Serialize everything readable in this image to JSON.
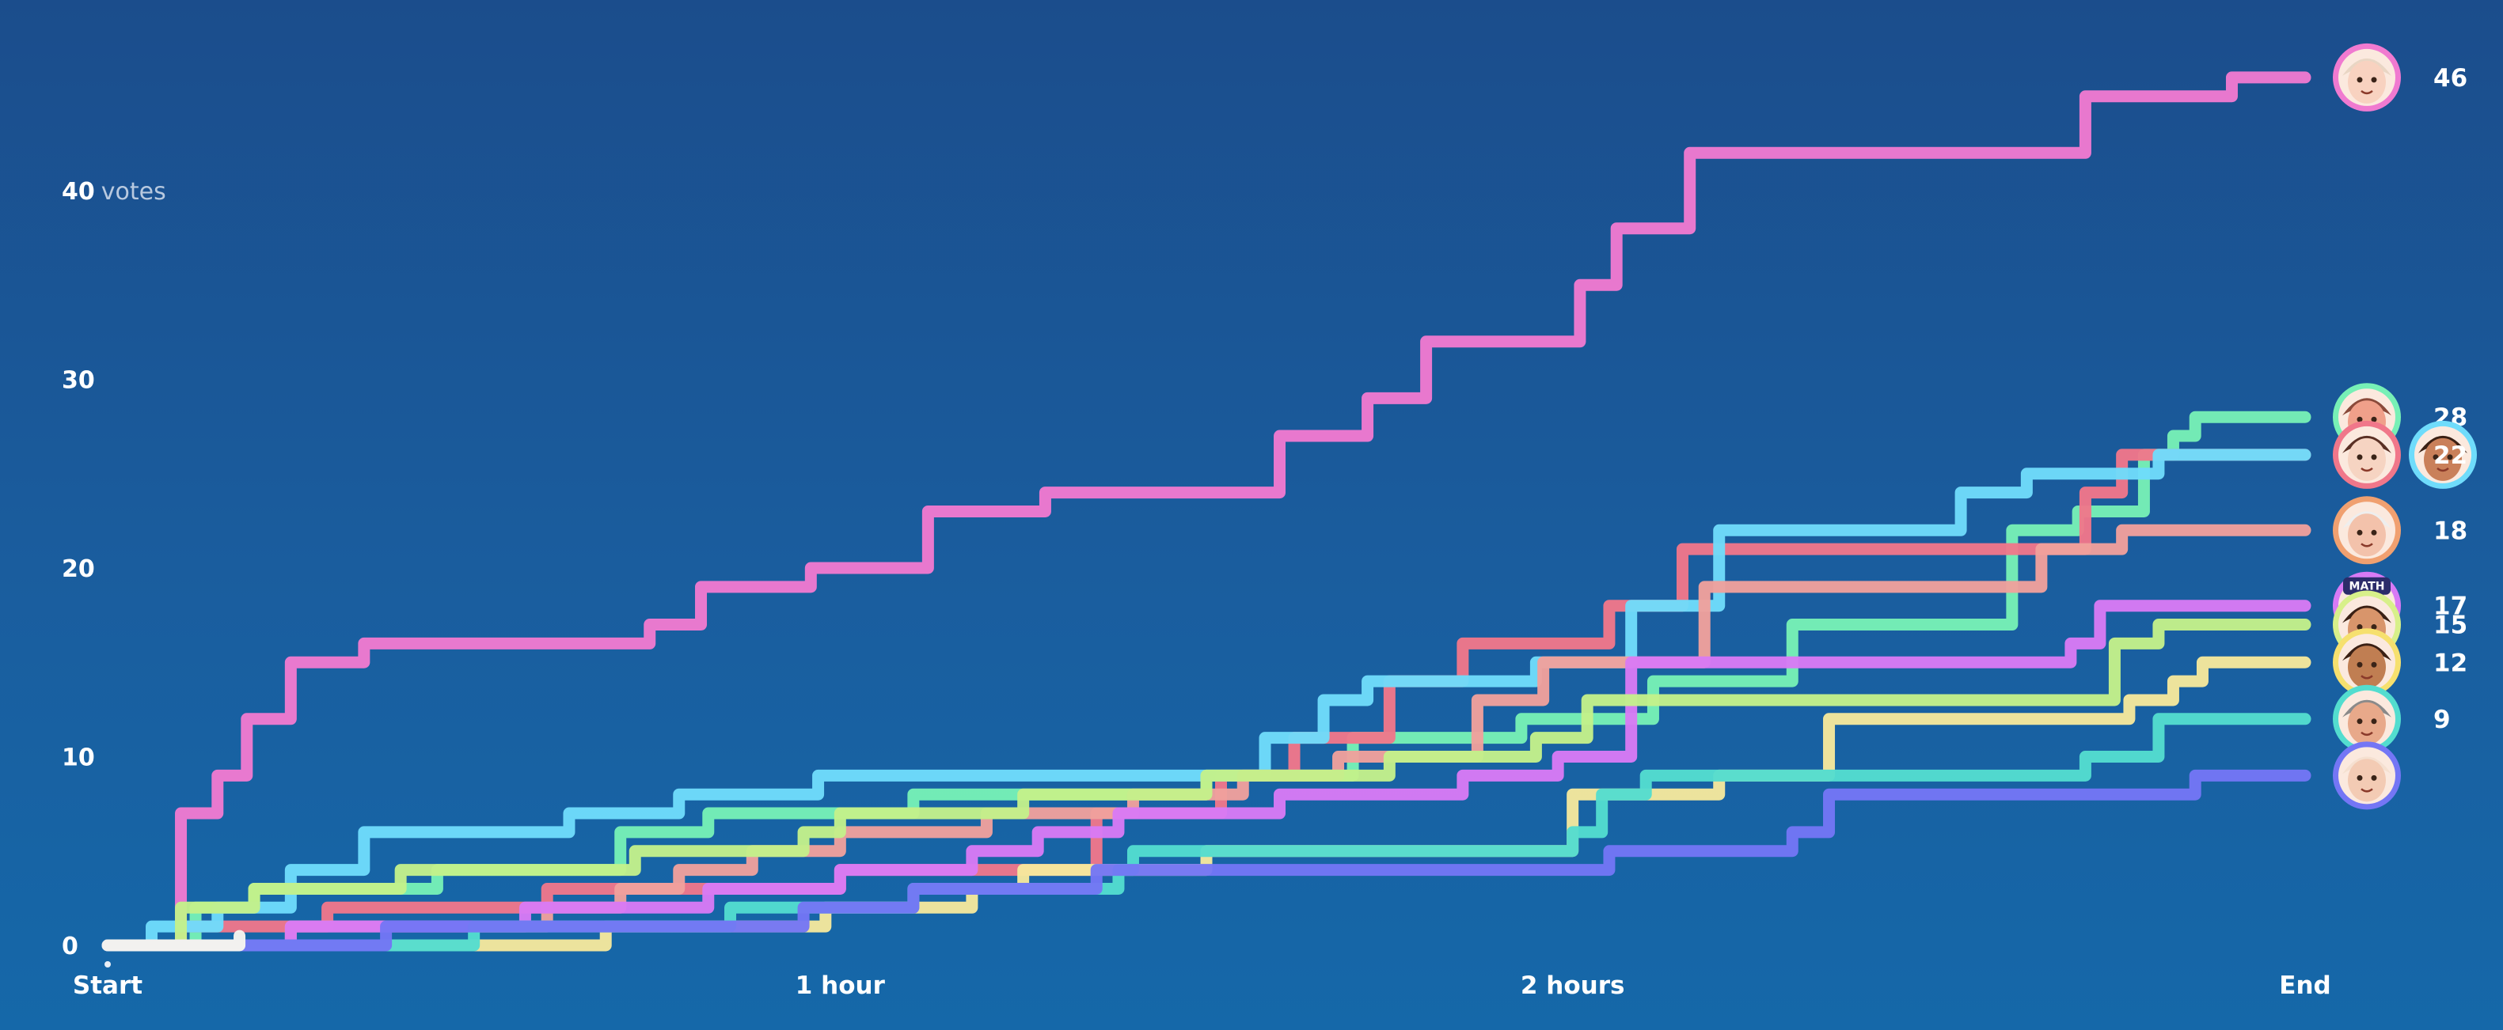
{
  "chart_data": {
    "type": "line",
    "step": true,
    "x_ticks": [
      "Start",
      "1 hour",
      "2 hours",
      "End"
    ],
    "x_tick_values": [
      0,
      1,
      2,
      3
    ],
    "xlim": [
      0,
      3
    ],
    "y_ticks": [
      0,
      10,
      20,
      30,
      40
    ],
    "y_unit_label": "votes",
    "ylim": [
      0,
      48
    ],
    "grid": false,
    "legend": "end-of-line avatars with final counts",
    "end_label_visible": [
      "46",
      "28",
      "",
      "22",
      "18",
      "17",
      "15",
      "12",
      "9"
    ],
    "series": [
      {
        "id": "pink",
        "color": "#f07ad0",
        "final": 46,
        "points": [
          [
            0,
            0
          ],
          [
            0.07,
            0
          ],
          [
            0.1,
            7
          ],
          [
            0.15,
            9
          ],
          [
            0.19,
            12
          ],
          [
            0.25,
            15
          ],
          [
            0.35,
            16
          ],
          [
            0.74,
            17
          ],
          [
            0.81,
            19
          ],
          [
            0.96,
            20
          ],
          [
            1.12,
            23
          ],
          [
            1.28,
            24
          ],
          [
            1.6,
            27
          ],
          [
            1.72,
            29
          ],
          [
            1.8,
            32
          ],
          [
            2.01,
            35
          ],
          [
            2.06,
            38
          ],
          [
            2.16,
            42
          ],
          [
            2.7,
            45
          ],
          [
            2.9,
            46
          ],
          [
            3,
            46
          ]
        ]
      },
      {
        "id": "green",
        "color": "#77f0b6",
        "final": 28,
        "points": [
          [
            0,
            0
          ],
          [
            0.12,
            2
          ],
          [
            0.2,
            3
          ],
          [
            0.45,
            4
          ],
          [
            0.7,
            6
          ],
          [
            0.82,
            7
          ],
          [
            1.1,
            8
          ],
          [
            1.5,
            9
          ],
          [
            1.7,
            11
          ],
          [
            1.93,
            12
          ],
          [
            2.11,
            14
          ],
          [
            2.3,
            17
          ],
          [
            2.6,
            22
          ],
          [
            2.69,
            23
          ],
          [
            2.78,
            26
          ],
          [
            2.82,
            27
          ],
          [
            2.85,
            28
          ],
          [
            3,
            28
          ]
        ]
      },
      {
        "id": "coral",
        "color": "#f0778a",
        "final": 26,
        "points": [
          [
            0,
            0
          ],
          [
            0.1,
            1
          ],
          [
            0.3,
            2
          ],
          [
            0.6,
            3
          ],
          [
            1.0,
            4
          ],
          [
            1.35,
            7
          ],
          [
            1.52,
            9
          ],
          [
            1.62,
            11
          ],
          [
            1.75,
            14
          ],
          [
            1.85,
            16
          ],
          [
            2.05,
            18
          ],
          [
            2.15,
            21
          ],
          [
            2.55,
            21
          ],
          [
            2.7,
            24
          ],
          [
            2.75,
            26
          ],
          [
            3,
            26
          ]
        ]
      },
      {
        "id": "sky",
        "color": "#6fdcfb",
        "final": 26,
        "points": [
          [
            0,
            0
          ],
          [
            0.06,
            1
          ],
          [
            0.15,
            2
          ],
          [
            0.25,
            4
          ],
          [
            0.35,
            6
          ],
          [
            0.63,
            7
          ],
          [
            0.78,
            8
          ],
          [
            0.97,
            9
          ],
          [
            1.3,
            9
          ],
          [
            1.58,
            11
          ],
          [
            1.66,
            13
          ],
          [
            1.72,
            14
          ],
          [
            1.95,
            15
          ],
          [
            2.08,
            18
          ],
          [
            2.2,
            22
          ],
          [
            2.53,
            24
          ],
          [
            2.62,
            25
          ],
          [
            2.8,
            26
          ],
          [
            3,
            26
          ]
        ]
      },
      {
        "id": "salmon",
        "color": "#f0a09c",
        "final": 22,
        "points": [
          [
            0,
            0
          ],
          [
            0.25,
            1
          ],
          [
            0.6,
            2
          ],
          [
            0.7,
            3
          ],
          [
            0.78,
            4
          ],
          [
            0.88,
            5
          ],
          [
            1.0,
            6
          ],
          [
            1.2,
            7
          ],
          [
            1.4,
            8
          ],
          [
            1.55,
            9
          ],
          [
            1.68,
            10
          ],
          [
            1.87,
            13
          ],
          [
            1.96,
            15
          ],
          [
            2.18,
            19
          ],
          [
            2.38,
            19
          ],
          [
            2.64,
            21
          ],
          [
            2.75,
            22
          ],
          [
            3,
            22
          ]
        ]
      },
      {
        "id": "violet",
        "color": "#d87af5",
        "final": 18,
        "points": [
          [
            0,
            0
          ],
          [
            0.25,
            1
          ],
          [
            0.57,
            2
          ],
          [
            0.82,
            3
          ],
          [
            1.0,
            4
          ],
          [
            1.18,
            5
          ],
          [
            1.27,
            6
          ],
          [
            1.38,
            7
          ],
          [
            1.6,
            8
          ],
          [
            1.85,
            9
          ],
          [
            1.98,
            10
          ],
          [
            2.08,
            15
          ],
          [
            2.68,
            16
          ],
          [
            2.72,
            18
          ],
          [
            3,
            18
          ]
        ]
      },
      {
        "id": "lime",
        "color": "#c4f08a",
        "final": 17,
        "points": [
          [
            0,
            0
          ],
          [
            0.1,
            2
          ],
          [
            0.2,
            3
          ],
          [
            0.4,
            4
          ],
          [
            0.72,
            5
          ],
          [
            0.95,
            6
          ],
          [
            1.0,
            7
          ],
          [
            1.25,
            8
          ],
          [
            1.5,
            9
          ],
          [
            1.75,
            10
          ],
          [
            1.95,
            11
          ],
          [
            2.02,
            13
          ],
          [
            2.68,
            13
          ],
          [
            2.74,
            16
          ],
          [
            2.8,
            17
          ],
          [
            3,
            17
          ]
        ]
      },
      {
        "id": "yellow",
        "color": "#f6e89c",
        "final": 15,
        "points": [
          [
            0,
            0
          ],
          [
            0.35,
            0
          ],
          [
            0.68,
            1
          ],
          [
            0.98,
            2
          ],
          [
            1.18,
            3
          ],
          [
            1.25,
            4
          ],
          [
            1.5,
            5
          ],
          [
            1.95,
            5
          ],
          [
            2.0,
            8
          ],
          [
            2.2,
            9
          ],
          [
            2.35,
            12
          ],
          [
            2.76,
            13
          ],
          [
            2.82,
            14
          ],
          [
            2.86,
            15
          ],
          [
            3,
            15
          ]
        ]
      },
      {
        "id": "teal",
        "color": "#53ddcf",
        "final": 12,
        "points": [
          [
            0,
            0
          ],
          [
            0.5,
            1
          ],
          [
            0.85,
            2
          ],
          [
            1.1,
            3
          ],
          [
            1.38,
            4
          ],
          [
            1.4,
            5
          ],
          [
            1.75,
            5
          ],
          [
            2.0,
            6
          ],
          [
            2.04,
            8
          ],
          [
            2.1,
            9
          ],
          [
            2.5,
            9
          ],
          [
            2.7,
            10
          ],
          [
            2.8,
            12
          ],
          [
            3,
            12
          ]
        ]
      },
      {
        "id": "indigo",
        "color": "#7476f5",
        "final": 9,
        "points": [
          [
            0,
            0
          ],
          [
            0.15,
            0
          ],
          [
            0.38,
            1
          ],
          [
            0.95,
            2
          ],
          [
            1.1,
            3
          ],
          [
            1.35,
            4
          ],
          [
            1.85,
            4
          ],
          [
            2.05,
            5
          ],
          [
            2.3,
            6
          ],
          [
            2.35,
            8
          ],
          [
            2.85,
            9
          ],
          [
            3,
            9
          ]
        ]
      },
      {
        "id": "white",
        "color": "#f8f6ee",
        "final": 0,
        "points": [
          [
            0,
            0
          ],
          [
            0.1,
            0
          ],
          [
            0.18,
            0.5
          ]
        ]
      }
    ],
    "avatars": [
      {
        "series": "pink",
        "ring": "#f07ad0",
        "skin": "#f8d2c0",
        "hair": "#e9d6c4",
        "badge": ""
      },
      {
        "series": "green",
        "ring": "#77f0b6",
        "skin": "#f0a08a",
        "hair": "#8a4a3a",
        "badge": ""
      },
      {
        "series": "coral",
        "ring": "#f0778a",
        "skin": "#f6d4c2",
        "hair": "#5a3024",
        "badge": ""
      },
      {
        "series": "sky",
        "ring": "#6fdcfb",
        "skin": "#c9805a",
        "hair": "#3a2014",
        "badge": ""
      },
      {
        "series": "salmon",
        "ring": "#f0a070",
        "skin": "#f3c2ab",
        "hair": "#eeeeee",
        "badge": ""
      },
      {
        "series": "violet",
        "ring": "#d87af5",
        "skin": "#e9b28d",
        "hair": "#2b2c6a",
        "badge": "MATH"
      },
      {
        "series": "lime",
        "ring": "#d8f08a",
        "skin": "#d8956b",
        "hair": "#3a2014",
        "badge": ""
      },
      {
        "series": "yellow",
        "ring": "#f6e06e",
        "skin": "#c07e52",
        "hair": "#3a2014",
        "badge": ""
      },
      {
        "series": "teal",
        "ring": "#53ddcf",
        "skin": "#e8a98a",
        "hair": "#8a8a8a",
        "badge": ""
      },
      {
        "series": "indigo",
        "ring": "#7476f5",
        "skin": "#f3cbb4",
        "hair": "#f5e0d0",
        "badge": ""
      }
    ]
  }
}
